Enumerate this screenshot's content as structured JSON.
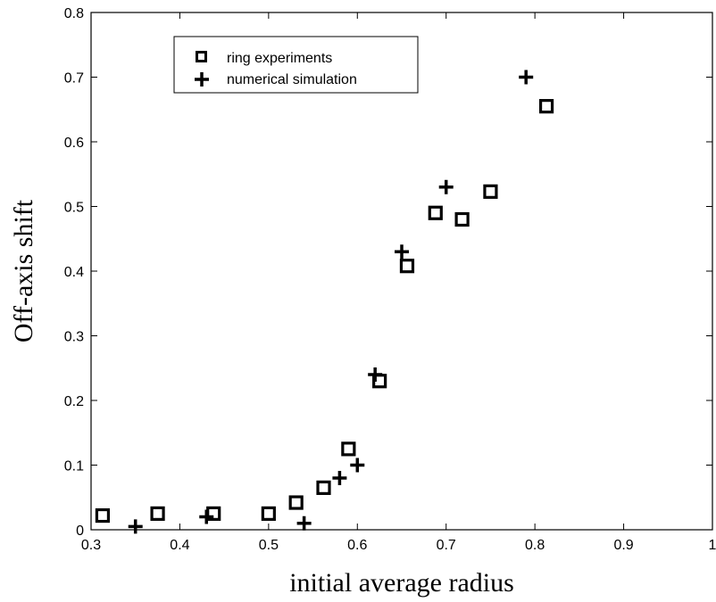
{
  "chart_data": {
    "type": "scatter",
    "title": "",
    "xlabel": "initial average radius",
    "ylabel": "Off-axis shift",
    "xlim": [
      0.3,
      1.0
    ],
    "ylim": [
      0,
      0.8
    ],
    "xticks": [
      0.3,
      0.4,
      0.5,
      0.6,
      0.7,
      0.8,
      0.9,
      1.0
    ],
    "xtick_labels": [
      "0.3",
      "0.4",
      "0.5",
      "0.6",
      "0.7",
      "0.8",
      "0.9",
      "1"
    ],
    "yticks": [
      0,
      0.1,
      0.2,
      0.3,
      0.4,
      0.5,
      0.6,
      0.7,
      0.8
    ],
    "ytick_labels": [
      "0",
      "0.1",
      "0.2",
      "0.3",
      "0.4",
      "0.5",
      "0.6",
      "0.7",
      "0.8"
    ],
    "grid": false,
    "legend_position": "top-left",
    "series": [
      {
        "name": "ring experiments",
        "marker": "square",
        "color": "#000000",
        "points": [
          {
            "x": 0.313,
            "y": 0.022
          },
          {
            "x": 0.375,
            "y": 0.025
          },
          {
            "x": 0.438,
            "y": 0.025
          },
          {
            "x": 0.5,
            "y": 0.025
          },
          {
            "x": 0.531,
            "y": 0.042
          },
          {
            "x": 0.562,
            "y": 0.065
          },
          {
            "x": 0.59,
            "y": 0.125
          },
          {
            "x": 0.625,
            "y": 0.23
          },
          {
            "x": 0.656,
            "y": 0.408
          },
          {
            "x": 0.688,
            "y": 0.49
          },
          {
            "x": 0.718,
            "y": 0.48
          },
          {
            "x": 0.75,
            "y": 0.523
          },
          {
            "x": 0.813,
            "y": 0.655
          }
        ]
      },
      {
        "name": "numerical simulation",
        "marker": "plus",
        "color": "#000000",
        "points": [
          {
            "x": 0.35,
            "y": 0.005
          },
          {
            "x": 0.43,
            "y": 0.02
          },
          {
            "x": 0.54,
            "y": 0.01
          },
          {
            "x": 0.58,
            "y": 0.08
          },
          {
            "x": 0.6,
            "y": 0.1
          },
          {
            "x": 0.62,
            "y": 0.24
          },
          {
            "x": 0.65,
            "y": 0.43
          },
          {
            "x": 0.7,
            "y": 0.53
          },
          {
            "x": 0.79,
            "y": 0.7
          }
        ]
      }
    ]
  }
}
